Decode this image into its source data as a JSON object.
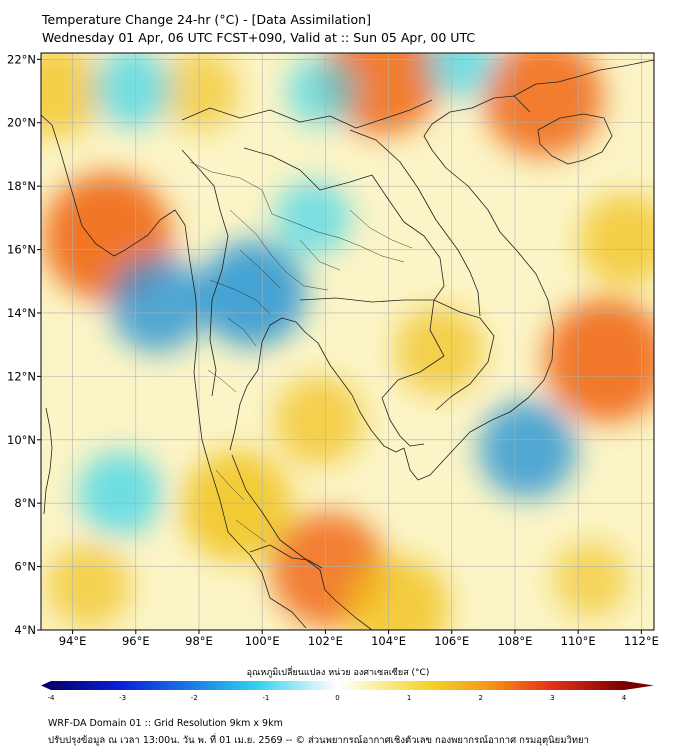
{
  "header": {
    "title": "Temperature Change 24-hr (°C) - [Data Assimilation]",
    "subtitle": "Wednesday 01 Apr, 06 UTC FCST+090, Valid at :: Sun 05 Apr, 00 UTC"
  },
  "map": {
    "lon_ticks": [
      "94°E",
      "96°E",
      "98°E",
      "100°E",
      "102°E",
      "104°E",
      "106°E",
      "108°E",
      "110°E",
      "112°E"
    ],
    "lat_ticks": [
      "4°N",
      "6°N",
      "8°N",
      "10°N",
      "12°N",
      "14°N",
      "16°N",
      "18°N",
      "20°N",
      "22°N"
    ],
    "lon_range": [
      93,
      112.4
    ],
    "lat_range": [
      4,
      22.2
    ],
    "warm_spots": [
      {
        "lon": 95.1,
        "lat": 16.4,
        "dT": 2.1
      },
      {
        "lon": 110.9,
        "lat": 12.5,
        "dT": 2.0
      },
      {
        "lon": 103.8,
        "lat": 21.5,
        "dT": 1.9
      },
      {
        "lon": 108.9,
        "lat": 20.8,
        "dT": 1.9
      },
      {
        "lon": 102.1,
        "lat": 5.9,
        "dT": 1.8
      },
      {
        "lon": 99.2,
        "lat": 7.9,
        "dT": 1.7
      },
      {
        "lon": 104.3,
        "lat": 4.7,
        "dT": 1.5
      },
      {
        "lon": 101.8,
        "lat": 10.6,
        "dT": 1.2
      },
      {
        "lon": 105.6,
        "lat": 12.8,
        "dT": 1.2
      },
      {
        "lon": 93.5,
        "lat": 21.0,
        "dT": 1.3
      },
      {
        "lon": 111.5,
        "lat": 16.3,
        "dT": 1.3
      },
      {
        "lon": 98.0,
        "lat": 21.0,
        "dT": 1.0
      },
      {
        "lon": 94.5,
        "lat": 5.4,
        "dT": 1.1
      },
      {
        "lon": 110.4,
        "lat": 5.6,
        "dT": 0.9
      }
    ],
    "cool_spots": [
      {
        "lon": 99.7,
        "lat": 14.6,
        "dT": -1.6
      },
      {
        "lon": 96.7,
        "lat": 14.3,
        "dT": -1.4
      },
      {
        "lon": 108.4,
        "lat": 9.7,
        "dT": -1.4
      },
      {
        "lon": 95.5,
        "lat": 8.3,
        "dT": -1.1
      },
      {
        "lon": 95.9,
        "lat": 21.1,
        "dT": -1.0
      },
      {
        "lon": 101.6,
        "lat": 17.0,
        "dT": -0.9
      },
      {
        "lon": 106.3,
        "lat": 21.9,
        "dT": -0.9
      },
      {
        "lon": 101.9,
        "lat": 21.0,
        "dT": -0.8
      }
    ],
    "colors": {
      "warm": "#f1c21a",
      "hot": "#f06a18",
      "cool": "#2fd4ef",
      "cold": "#1b8fd6",
      "coast": "#222222"
    }
  },
  "colorbar": {
    "label": "อุณหภูมิเปลี่ยนแปลง หน่วย องศาเซลเซียส (°C)",
    "ticks": [
      "-4",
      "-3",
      "-2",
      "-1",
      "0",
      "1",
      "2",
      "3",
      "4"
    ],
    "range": [
      -4,
      4
    ]
  },
  "footer": {
    "line1": "WRF-DA Domain 01 :: Grid Resolution 9km x 9km",
    "line2": "ปรับปรุงข้อมูล ณ เวลา 13:00น. วัน พ. ที่ 01 เม.ย. 2569 -- © ส่วนพยากรณ์อากาศเชิงตัวเลข กองพยากรณ์อากาศ กรมอุตุนิยมวิทยา"
  }
}
